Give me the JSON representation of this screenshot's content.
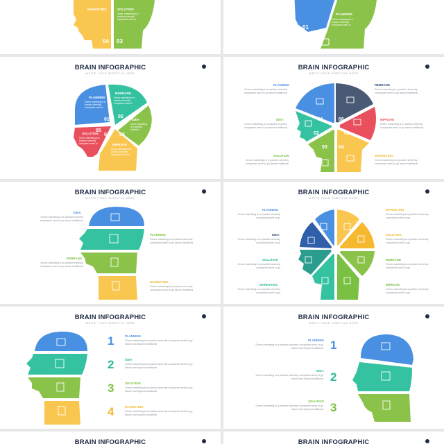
{
  "colors": {
    "blue": "#4a90e2",
    "teal": "#35c2a1",
    "green": "#8bc34a",
    "yellow": "#f9c74f",
    "red": "#e94f5c",
    "navy": "#4a5a75",
    "title": "#1f2a44"
  },
  "slide1": {
    "solution": "SOLUTION",
    "marketing": "MARKETING",
    "num_04": "04",
    "num_03": "03"
  },
  "slide2": {
    "planning": "PLANNING",
    "num_01": "01",
    "desc": "Green marketing is a practice whereby companies seek to"
  },
  "slide3": {
    "title": "BRAIN INFOGRAPHIC",
    "subtitle": "WRITE YOUR SUBTITLE HERE",
    "segments": [
      {
        "label": "PLANNING",
        "num": "01",
        "desc": "Green marketing is a practice whereby companies seek to"
      },
      {
        "label": "REBRAND",
        "num": "02",
        "desc": "Green marketing is a practice whereby companies seek to"
      },
      {
        "label": "IDEA",
        "num": "03",
        "desc": "Green marketing is a practice whereby companies seek to"
      },
      {
        "label": "IMPROVE",
        "num": "04",
        "desc": "Green marketing is a practice whereby companies seek to"
      },
      {
        "label": "SOLUTION",
        "num": "05",
        "desc": "Green marketing is a practice whereby companies seek to"
      }
    ]
  },
  "slide4": {
    "title": "BRAIN INFOGRAPHIC",
    "subtitle": "WRITE YOUR SUBTITLE HERE",
    "left": [
      {
        "label": "PLANNING",
        "desc": "Green marketing is a practice whereby companies seek to go above traditional"
      },
      {
        "label": "IDEA",
        "desc": "Green marketing is a practice whereby companies seek to go above traditional"
      },
      {
        "label": "SOLUTION",
        "desc": "Green marketing is a practice whereby companies seek to go above traditional"
      }
    ],
    "right": [
      {
        "label": "REBRAND",
        "desc": "Green marketing is a practice whereby companies seek to go above traditional"
      },
      {
        "label": "IMPROVE",
        "desc": "Green marketing is a practice whereby companies seek to go above traditional"
      },
      {
        "label": "MARKETING",
        "desc": "Green marketing is a practice whereby companies seek to go above traditional"
      }
    ],
    "nums": [
      "01",
      "06",
      "02",
      "05",
      "03",
      "04"
    ]
  },
  "slide5": {
    "title": "BRAIN INFOGRAPHIC",
    "subtitle": "WRITE YOUR SUBTITLE HERE",
    "items": [
      {
        "label": "IDEA",
        "desc": "Green marketing is a practice whereby companies seek to go above traditional"
      },
      {
        "label": "PLANNING",
        "desc": "Green marketing is a practice whereby companies seek to go above traditional"
      },
      {
        "label": "REBRAND",
        "desc": "Green marketing is a practice whereby companies seek to go above traditional"
      },
      {
        "label": "MARKETING",
        "desc": "Green marketing is a practice whereby companies seek to go above traditional"
      }
    ]
  },
  "slide6": {
    "title": "BRAIN INFOGRAPHIC",
    "subtitle": "WRITE YOUR SUBTITLE HERE",
    "left": [
      {
        "label": "PLANNING",
        "desc": "Green marketing is a practice whereby companies seek to go"
      },
      {
        "label": "IDEA",
        "desc": "Green marketing is a practice whereby companies seek to go"
      },
      {
        "label": "SOLUTION",
        "desc": "Green marketing is a practice whereby companies seek to go"
      },
      {
        "label": "MARKETING",
        "desc": "Green marketing is a practice whereby companies seek to go"
      }
    ],
    "right": [
      {
        "label": "MARKETING",
        "desc": "Green marketing is a practice whereby companies seek to go"
      },
      {
        "label": "SOLUTION",
        "desc": "Green marketing is a practice whereby companies seek to go"
      },
      {
        "label": "REBRAND",
        "desc": "Green marketing is a practice whereby companies seek to go"
      },
      {
        "label": "IMPROVE",
        "desc": "Green marketing is a practice whereby companies seek to go"
      }
    ]
  },
  "slide7": {
    "title": "BRAIN INFOGRAPHIC",
    "subtitle": "WRITE YOUR SUBTITLE HERE",
    "items": [
      {
        "num": "1",
        "label": "PLANNING",
        "desc": "Green marketing is a practice whereby companies seek to go above and beyond traditional"
      },
      {
        "num": "2",
        "label": "IDEA",
        "desc": "Green marketing is a practice whereby companies seek to go above and beyond traditional"
      },
      {
        "num": "3",
        "label": "SOLUTION",
        "desc": "Green marketing is a practice whereby companies seek to go above and beyond traditional"
      },
      {
        "num": "4",
        "label": "MARKETING",
        "desc": "Green marketing is a practice whereby companies seek to go above and beyond traditional"
      }
    ]
  },
  "slide8": {
    "title": "BRAIN INFOGRAPHIC",
    "subtitle": "WRITE YOUR SUBTITLE HERE",
    "items": [
      {
        "num": "1",
        "label": "PLANNING",
        "desc": "Green marketing is a practice whereby companies seek to go above and beyond traditional"
      },
      {
        "num": "2",
        "label": "IDEA",
        "desc": "Green marketing is a practice whereby companies seek to go above and beyond traditional"
      },
      {
        "num": "3",
        "label": "SOLUTION",
        "desc": "Green marketing is a practice whereby companies seek to go above and beyond traditional"
      }
    ]
  },
  "slide9": {
    "title": "BRAIN INFOGRAPHIC"
  },
  "slide10": {
    "title": "BRAIN INFOGRAPHIC"
  }
}
